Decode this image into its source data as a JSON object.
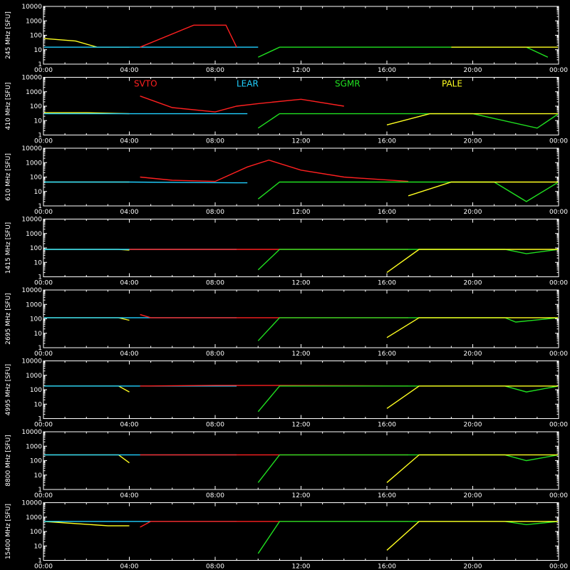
{
  "chart_data": {
    "type": "line",
    "xlabel": "",
    "x_tick_labels": [
      "00:00",
      "04:00",
      "08:00",
      "12:00",
      "16:00",
      "20:00",
      "00:00"
    ],
    "x_range_hours": [
      0,
      24
    ],
    "y_scale": "log",
    "y_range": [
      1,
      10000
    ],
    "y_tick_labels": [
      "1",
      "10",
      "100",
      "1000",
      "10000"
    ],
    "grid": false,
    "colors": {
      "background": "#000000",
      "axes": "#ffffff",
      "SVTO": "#ff2020",
      "LEAR": "#20d0ff",
      "SGMR": "#20e020",
      "PALE": "#ffff20"
    },
    "legend": {
      "placement": "top of panel 2",
      "entries": [
        {
          "name": "SVTO",
          "color": "#ff2020"
        },
        {
          "name": "LEAR",
          "color": "#20d0ff"
        },
        {
          "name": "SGMR",
          "color": "#20e020"
        },
        {
          "name": "PALE",
          "color": "#ffff20"
        }
      ]
    },
    "panels": [
      {
        "ylabel": "245 MHz [SFU]",
        "series": [
          {
            "name": "PALE",
            "x": [
              0,
              1.5,
              2.5,
              4.0
            ],
            "y": [
              60,
              40,
              15,
              15
            ]
          },
          {
            "name": "LEAR",
            "x": [
              0,
              4.0,
              9.5,
              10.0
            ],
            "y": [
              15,
              15,
              15,
              15
            ]
          },
          {
            "name": "SVTO",
            "x": [
              4.5,
              7.0,
              8.5,
              9.0
            ],
            "y": [
              15,
              500,
              500,
              15
            ]
          },
          {
            "name": "SGMR",
            "x": [
              10.0,
              11.0,
              17.0,
              22.5,
              23.5
            ],
            "y": [
              3,
              15,
              15,
              15,
              3
            ]
          },
          {
            "name": "PALE",
            "x": [
              19.0,
              23.0,
              24.0
            ],
            "y": [
              15,
              15,
              15
            ]
          }
        ]
      },
      {
        "ylabel": "410 MHz [SFU]",
        "series": [
          {
            "name": "PALE",
            "x": [
              0,
              2.0,
              4.0
            ],
            "y": [
              35,
              35,
              30
            ]
          },
          {
            "name": "LEAR",
            "x": [
              0,
              4.0,
              9.0,
              9.5
            ],
            "y": [
              30,
              30,
              30,
              30
            ]
          },
          {
            "name": "SVTO",
            "x": [
              4.5,
              6.0,
              8.0,
              9.0,
              10.0,
              12.0,
              14.0
            ],
            "y": [
              500,
              80,
              40,
              100,
              150,
              300,
              100
            ]
          },
          {
            "name": "SGMR",
            "x": [
              10.0,
              11.0,
              16.0,
              20.0,
              23.0,
              24.0
            ],
            "y": [
              3,
              30,
              30,
              30,
              3,
              30
            ]
          },
          {
            "name": "PALE",
            "x": [
              16.0,
              18.0,
              20.0,
              24.0
            ],
            "y": [
              5,
              30,
              30,
              30
            ]
          }
        ]
      },
      {
        "ylabel": "610 MHz [SFU]",
        "series": [
          {
            "name": "PALE",
            "x": [
              0,
              4.0
            ],
            "y": [
              45,
              45
            ]
          },
          {
            "name": "LEAR",
            "x": [
              0,
              4.0,
              9.0,
              9.5
            ],
            "y": [
              45,
              45,
              40,
              40
            ]
          },
          {
            "name": "SVTO",
            "x": [
              4.5,
              6.0,
              8.0,
              9.5,
              10.5,
              12.0,
              14.0,
              17.0
            ],
            "y": [
              100,
              60,
              50,
              500,
              1500,
              300,
              100,
              50
            ]
          },
          {
            "name": "SGMR",
            "x": [
              10.0,
              11.0,
              17.0,
              21.0,
              22.5,
              24.0
            ],
            "y": [
              3,
              45,
              45,
              45,
              2,
              45
            ]
          },
          {
            "name": "PALE",
            "x": [
              17.0,
              19.0,
              24.0
            ],
            "y": [
              5,
              45,
              45
            ]
          }
        ]
      },
      {
        "ylabel": "1415 MHz [SFU]",
        "series": [
          {
            "name": "PALE",
            "x": [
              0,
              3.5,
              4.0
            ],
            "y": [
              80,
              80,
              70
            ]
          },
          {
            "name": "LEAR",
            "x": [
              0,
              9.0
            ],
            "y": [
              80,
              80
            ]
          },
          {
            "name": "SVTO",
            "x": [
              4.0,
              17.0
            ],
            "y": [
              80,
              80
            ]
          },
          {
            "name": "SGMR",
            "x": [
              10.0,
              11.0,
              21.5,
              22.5,
              24.0
            ],
            "y": [
              3,
              80,
              80,
              40,
              80
            ]
          },
          {
            "name": "PALE",
            "x": [
              16.0,
              17.5,
              18.0,
              24.0
            ],
            "y": [
              2,
              80,
              80,
              80
            ]
          }
        ]
      },
      {
        "ylabel": "2695 MHz [SFU]",
        "series": [
          {
            "name": "PALE",
            "x": [
              0,
              3.5,
              4.0
            ],
            "y": [
              120,
              120,
              80
            ]
          },
          {
            "name": "LEAR",
            "x": [
              0,
              4.0,
              9.0
            ],
            "y": [
              120,
              120,
              120
            ]
          },
          {
            "name": "SVTO",
            "x": [
              4.5,
              5.0,
              17.0
            ],
            "y": [
              200,
              120,
              120
            ]
          },
          {
            "name": "SGMR",
            "x": [
              10.0,
              11.0,
              21.5,
              22.0,
              24.0
            ],
            "y": [
              3,
              120,
              120,
              60,
              120
            ]
          },
          {
            "name": "PALE",
            "x": [
              16.0,
              17.5,
              18.0,
              24.0
            ],
            "y": [
              5,
              120,
              120,
              120
            ]
          }
        ]
      },
      {
        "ylabel": "4995 MHz [SFU]",
        "series": [
          {
            "name": "PALE",
            "x": [
              0,
              3.5,
              4.0
            ],
            "y": [
              180,
              180,
              70
            ]
          },
          {
            "name": "LEAR",
            "x": [
              0,
              4.5,
              8.0,
              9.0
            ],
            "y": [
              180,
              180,
              180,
              180
            ]
          },
          {
            "name": "SVTO",
            "x": [
              4.5,
              8.0,
              11.0,
              17.0
            ],
            "y": [
              180,
              200,
              200,
              180
            ]
          },
          {
            "name": "SGMR",
            "x": [
              10.0,
              11.0,
              21.5,
              22.5,
              24.0
            ],
            "y": [
              3,
              180,
              180,
              70,
              180
            ]
          },
          {
            "name": "PALE",
            "x": [
              16.0,
              17.5,
              18.0,
              24.0
            ],
            "y": [
              5,
              180,
              180,
              180
            ]
          }
        ]
      },
      {
        "ylabel": "8800 MHz [SFU]",
        "series": [
          {
            "name": "PALE",
            "x": [
              0,
              3.5,
              4.0
            ],
            "y": [
              250,
              250,
              70
            ]
          },
          {
            "name": "LEAR",
            "x": [
              0,
              4.5,
              9.0
            ],
            "y": [
              250,
              250,
              250
            ]
          },
          {
            "name": "SVTO",
            "x": [
              4.5,
              17.0
            ],
            "y": [
              250,
              250
            ]
          },
          {
            "name": "SGMR",
            "x": [
              10.0,
              11.0,
              21.5,
              22.5,
              24.0
            ],
            "y": [
              3,
              250,
              250,
              100,
              250
            ]
          },
          {
            "name": "PALE",
            "x": [
              16.0,
              17.5,
              18.0,
              24.0
            ],
            "y": [
              3,
              250,
              250,
              250
            ]
          }
        ]
      },
      {
        "ylabel": "15400 MHz [SFU]",
        "series": [
          {
            "name": "PALE",
            "x": [
              0,
              3.0,
              4.0
            ],
            "y": [
              500,
              250,
              250
            ]
          },
          {
            "name": "LEAR",
            "x": [
              0,
              4.5,
              9.0
            ],
            "y": [
              500,
              500,
              500
            ]
          },
          {
            "name": "SVTO",
            "x": [
              4.5,
              5.0,
              17.0
            ],
            "y": [
              200,
              500,
              500
            ]
          },
          {
            "name": "SGMR",
            "x": [
              10.0,
              11.0,
              21.5,
              22.5,
              24.0
            ],
            "y": [
              3,
              500,
              500,
              300,
              500
            ]
          },
          {
            "name": "PALE",
            "x": [
              16.0,
              17.5,
              18.0,
              24.0
            ],
            "y": [
              5,
              500,
              500,
              500
            ]
          }
        ]
      }
    ]
  }
}
